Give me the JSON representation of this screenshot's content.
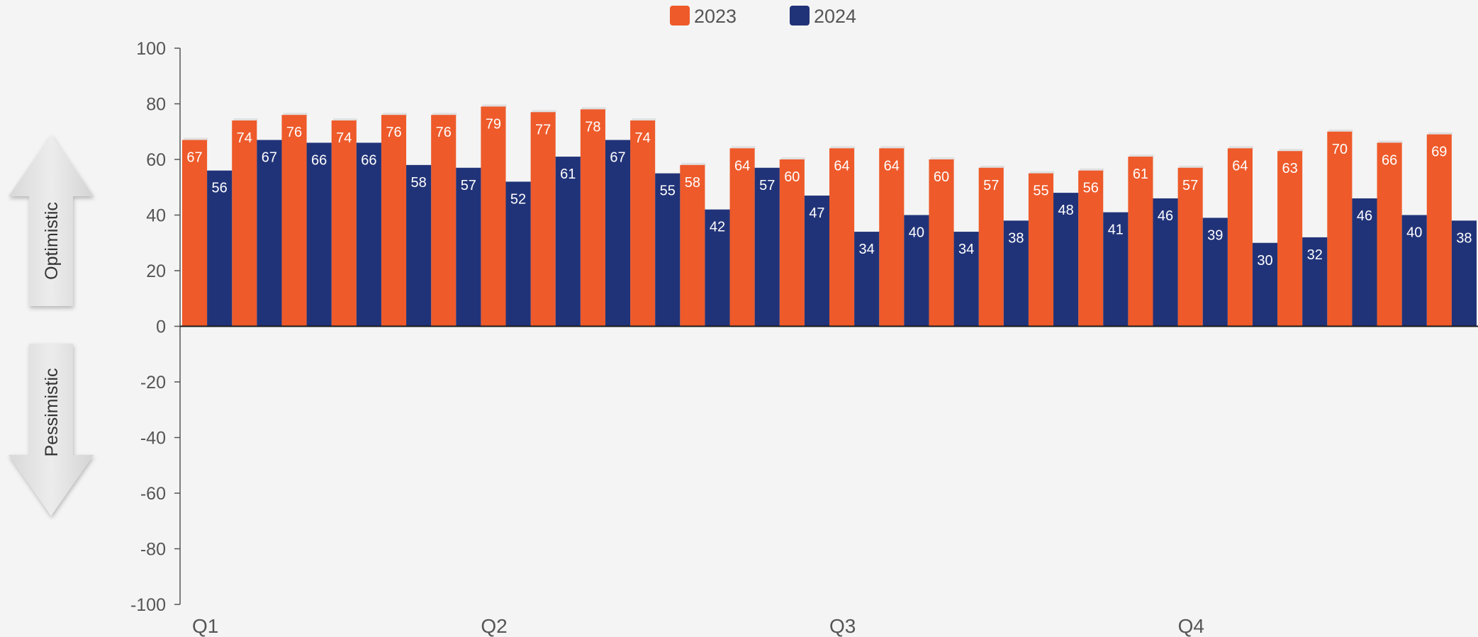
{
  "chart_data": {
    "type": "bar",
    "categories": [
      "",
      "",
      "",
      "",
      "",
      "",
      "",
      "",
      "",
      "",
      "",
      "",
      "",
      "",
      "",
      "",
      "",
      "",
      "",
      "",
      "",
      "",
      "",
      "",
      "",
      ""
    ],
    "quarter_labels": [
      "Q1",
      "Q2",
      "Q3",
      "Q4"
    ],
    "quarter_positions": [
      0,
      6,
      13,
      20
    ],
    "series": [
      {
        "name": "2023",
        "color": "#ee5a2a",
        "values": [
          67,
          74,
          76,
          74,
          76,
          76,
          79,
          77,
          78,
          74,
          58,
          64,
          60,
          64,
          64,
          60,
          57,
          55,
          56,
          61,
          57,
          64,
          63,
          70,
          66,
          69
        ]
      },
      {
        "name": "2024",
        "color": "#213378",
        "values": [
          56,
          67,
          66,
          66,
          58,
          57,
          52,
          61,
          67,
          55,
          42,
          57,
          47,
          34,
          40,
          34,
          38,
          48,
          41,
          46,
          39,
          30,
          32,
          46,
          40,
          38
        ]
      }
    ],
    "ylim": [
      -100,
      100
    ],
    "yticks": [
      100,
      80,
      60,
      40,
      20,
      0,
      -20,
      -40,
      -60,
      -80,
      -100
    ],
    "legend_position": "top-center",
    "grid": false,
    "annotations": {
      "up_arrow_label": "Optimistic",
      "down_arrow_label": "Pessimistic"
    }
  }
}
